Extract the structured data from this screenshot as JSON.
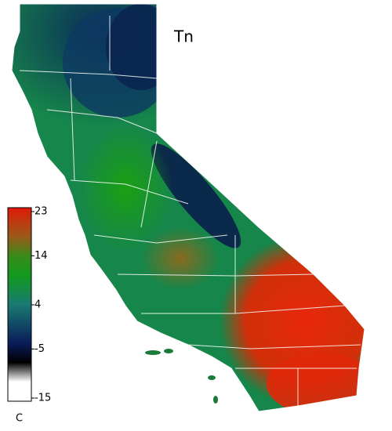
{
  "title": "Tn",
  "colorbar": {
    "label": "C",
    "range": [
      -15,
      23
    ],
    "ticks": [
      23,
      14,
      4,
      -5,
      -15
    ]
  }
}
